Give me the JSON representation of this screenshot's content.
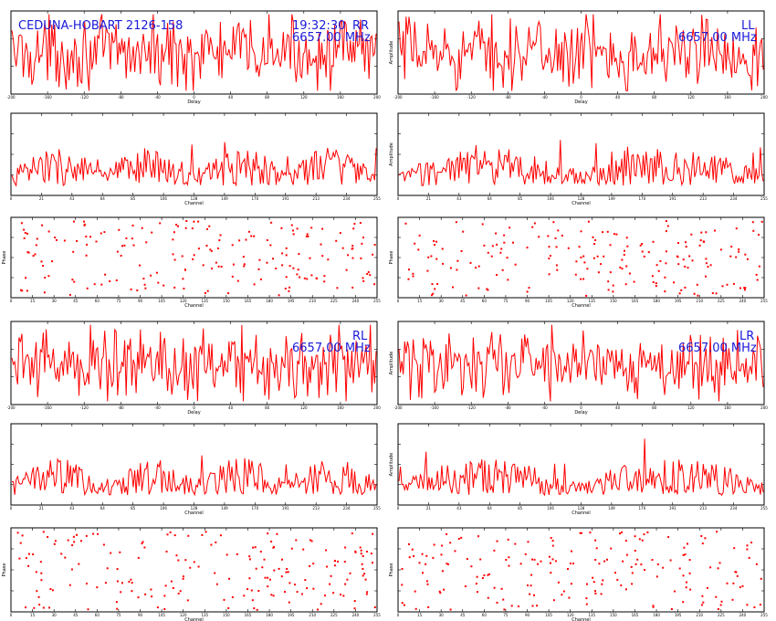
{
  "header": {
    "baseline": "CEDUNA-HOBART 2126-158",
    "time": "19:32:30",
    "frequency": "6657.00 MHz"
  },
  "colors": {
    "trace": "#ff0000",
    "label": "#1a1ad8",
    "frame": "#000000"
  },
  "chart_data": [
    {
      "type": "line",
      "pol": "RR",
      "kind": "delay",
      "xlabel": "Delay",
      "ylabel": "",
      "xlim": [
        -200,
        200
      ],
      "ylim": [
        0,
        3
      ]
    },
    {
      "type": "line",
      "pol": "LL",
      "kind": "delay",
      "xlabel": "Delay",
      "ylabel": "Amplitude",
      "xlim": [
        -200,
        200
      ],
      "ylim": [
        0,
        3
      ]
    },
    {
      "type": "line",
      "pol": "RR",
      "kind": "channel",
      "xlabel": "Channel",
      "ylabel": "",
      "xlim": [
        0,
        255
      ],
      "ylim": [
        0,
        8
      ]
    },
    {
      "type": "line",
      "pol": "LL",
      "kind": "channel",
      "xlabel": "Channel",
      "ylabel": "Amplitude",
      "xlim": [
        0,
        255
      ],
      "ylim": [
        0,
        8
      ]
    },
    {
      "type": "scatter",
      "pol": "RR",
      "kind": "phase",
      "xlabel": "Channel",
      "ylabel": "Phase",
      "xlim": [
        0,
        255
      ],
      "ylim": [
        -180,
        180
      ]
    },
    {
      "type": "scatter",
      "pol": "LL",
      "kind": "phase",
      "xlabel": "Channel",
      "ylabel": "Phase",
      "xlim": [
        0,
        255
      ],
      "ylim": [
        -180,
        180
      ]
    },
    {
      "type": "line",
      "pol": "RL",
      "kind": "delay",
      "xlabel": "Delay",
      "ylabel": "",
      "xlim": [
        -200,
        200
      ],
      "ylim": [
        0,
        3
      ]
    },
    {
      "type": "line",
      "pol": "LR",
      "kind": "delay",
      "xlabel": "Delay",
      "ylabel": "Amplitude",
      "xlim": [
        -200,
        200
      ],
      "ylim": [
        0,
        3
      ]
    },
    {
      "type": "line",
      "pol": "RL",
      "kind": "channel",
      "xlabel": "Channel",
      "ylabel": "",
      "xlim": [
        0,
        255
      ],
      "ylim": [
        0,
        8
      ]
    },
    {
      "type": "line",
      "pol": "LR",
      "kind": "channel",
      "xlabel": "Channel",
      "ylabel": "Amplitude",
      "xlim": [
        0,
        255
      ],
      "ylim": [
        0,
        8
      ]
    },
    {
      "type": "scatter",
      "pol": "RL",
      "kind": "phase",
      "xlabel": "Channel",
      "ylabel": "Phase",
      "xlim": [
        0,
        255
      ],
      "ylim": [
        -180,
        180
      ]
    },
    {
      "type": "scatter",
      "pol": "LR",
      "kind": "phase",
      "xlabel": "Channel",
      "ylabel": "Phase",
      "xlim": [
        0,
        255
      ],
      "ylim": [
        -180,
        180
      ]
    }
  ]
}
